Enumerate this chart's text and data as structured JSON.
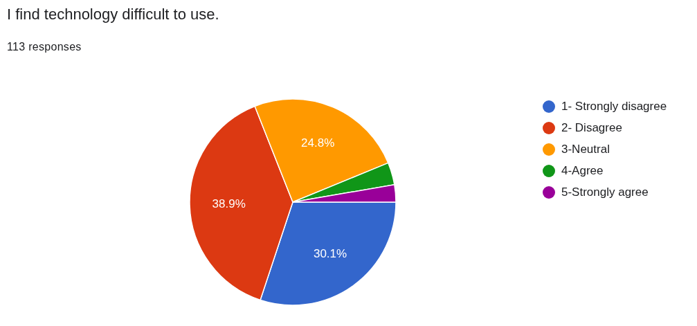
{
  "chart_data": {
    "type": "pie",
    "title": "I find technology difficult to use.",
    "subtitle": "113 responses",
    "categories": [
      "1- Strongly disagree",
      "2- Disagree",
      "3-Neutral",
      "4-Agree",
      "5-Strongly agree"
    ],
    "values": [
      30.1,
      38.9,
      24.8,
      3.5,
      2.7
    ],
    "colors": [
      "#3366cc",
      "#dc3912",
      "#ff9900",
      "#109618",
      "#990099"
    ],
    "value_labels": [
      "30.1%",
      "38.9%",
      "24.8%",
      null,
      null
    ],
    "legend": "right"
  }
}
